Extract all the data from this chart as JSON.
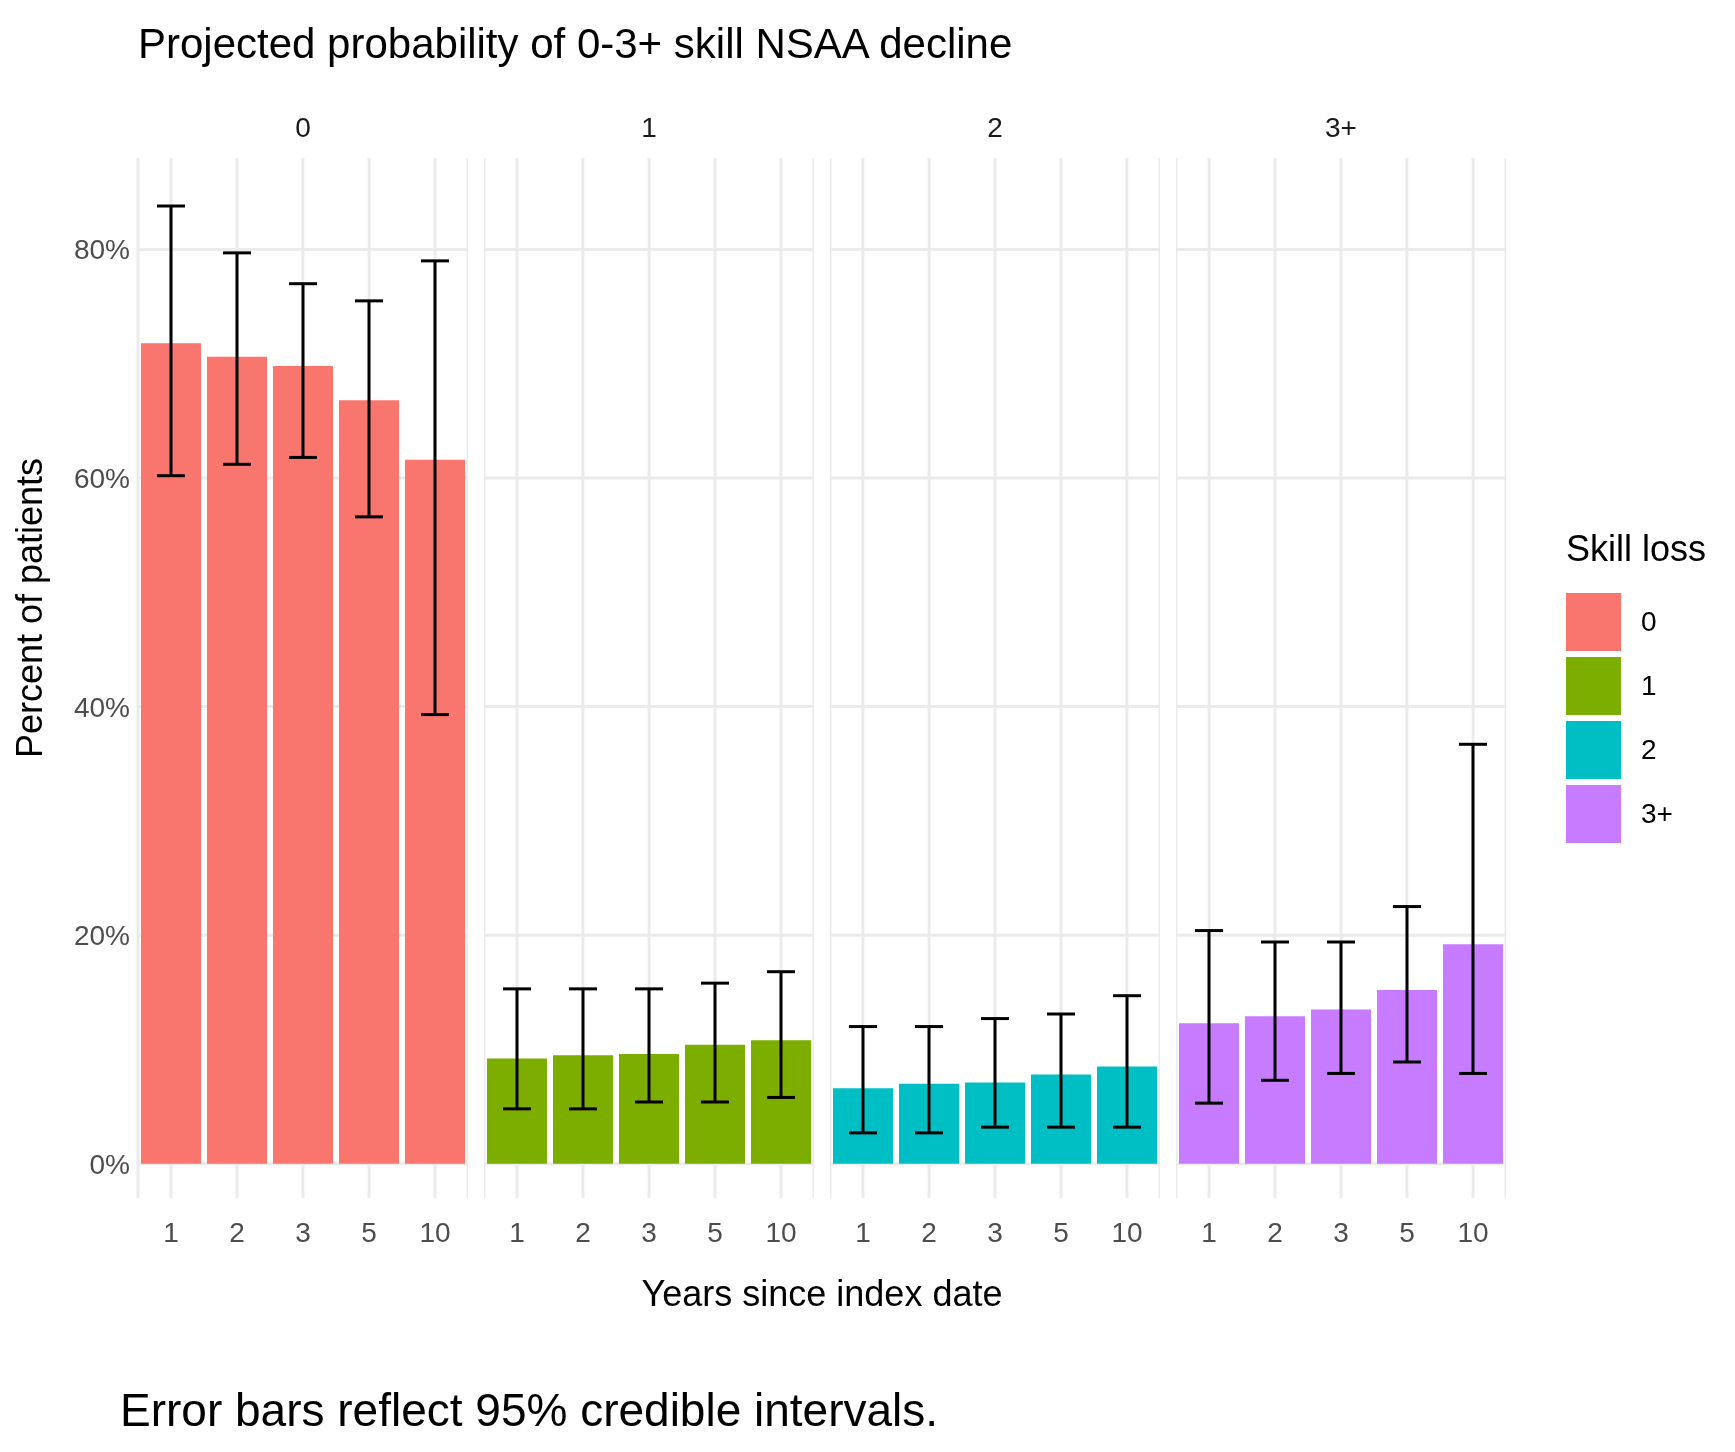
{
  "chart_data": [
    {
      "type": "bar",
      "title": "Projected probability of 0-3+ skill NSAA decline",
      "subtitle": "0",
      "xlabel": "Years since index date",
      "ylabel": "Percent of patients",
      "annotations": [
        "Error bars reflect 95% credible intervals."
      ],
      "categories": [
        "1",
        "2",
        "3",
        "5",
        "10"
      ],
      "series": [
        {
          "name": "0",
          "color": "#f8766d",
          "values": [
            71.8,
            70.6,
            69.8,
            66.8,
            61.6
          ],
          "errors": [
            [
              60.2,
              83.8
            ],
            [
              61.2,
              79.7
            ],
            [
              61.8,
              77.0
            ],
            [
              56.6,
              75.5
            ],
            [
              39.3,
              79.0
            ]
          ]
        }
      ],
      "ylim": [
        -3,
        88
      ],
      "yticks": [
        {
          "value": 0,
          "label": "0%"
        },
        {
          "value": 20,
          "label": "20%"
        },
        {
          "value": 40,
          "label": "40%"
        },
        {
          "value": 60,
          "label": "60%"
        },
        {
          "value": 80,
          "label": "80%"
        }
      ],
      "grid": true
    },
    {
      "type": "bar",
      "subtitle": "1",
      "categories": [
        "1",
        "2",
        "3",
        "5",
        "10"
      ],
      "series": [
        {
          "name": "1",
          "color": "#7cae00",
          "values": [
            9.2,
            9.5,
            9.6,
            10.4,
            10.8
          ],
          "errors": [
            [
              4.8,
              15.3
            ],
            [
              4.8,
              15.3
            ],
            [
              5.4,
              15.3
            ],
            [
              5.4,
              15.8
            ],
            [
              5.8,
              16.8
            ]
          ]
        }
      ],
      "ylim": [
        -3,
        88
      ],
      "yticks": [
        0,
        20,
        40,
        60,
        80
      ],
      "grid": true,
      "tick_labels": "x"
    },
    {
      "type": "bar",
      "subtitle": "2",
      "categories": [
        "1",
        "2",
        "3",
        "5",
        "10"
      ],
      "series": [
        {
          "name": "2",
          "color": "#00bfc4",
          "values": [
            6.6,
            7.0,
            7.1,
            7.8,
            8.5
          ],
          "errors": [
            [
              2.7,
              12.0
            ],
            [
              2.7,
              12.0
            ],
            [
              3.2,
              12.7
            ],
            [
              3.2,
              13.1
            ],
            [
              3.2,
              14.7
            ]
          ]
        }
      ],
      "ylim": [
        -3,
        88
      ],
      "yticks": [
        0,
        20,
        40,
        60,
        80
      ],
      "grid": true,
      "tick_labels": "x"
    },
    {
      "type": "bar",
      "subtitle": "3+",
      "legend_title": "Skill loss",
      "legend": "right",
      "categories": [
        "1",
        "2",
        "3",
        "5",
        "10"
      ],
      "series": [
        {
          "name": "3+",
          "color": "#c77cff",
          "values": [
            12.3,
            12.9,
            13.5,
            15.2,
            19.2
          ],
          "errors": [
            [
              5.3,
              20.4
            ],
            [
              7.3,
              19.4
            ],
            [
              7.9,
              19.4
            ],
            [
              8.9,
              22.5
            ],
            [
              7.9,
              36.7
            ]
          ]
        }
      ],
      "ylim": [
        -3,
        88
      ],
      "yticks": [
        0,
        20,
        40,
        60,
        80
      ],
      "grid": true,
      "tick_labels": "x"
    }
  ]
}
